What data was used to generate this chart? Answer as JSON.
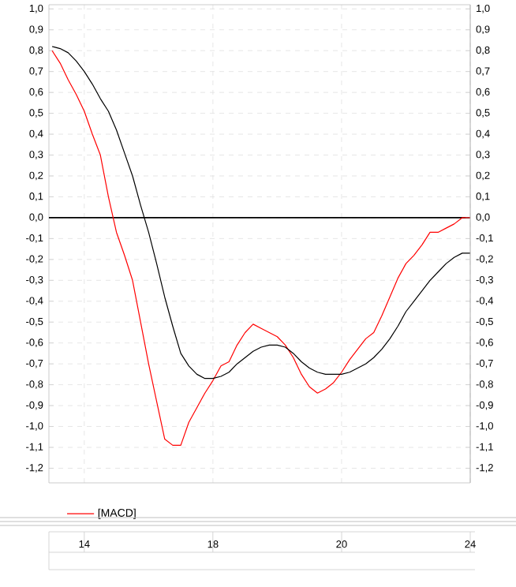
{
  "chart_data": {
    "type": "line",
    "categories": [
      null,
      null,
      null,
      null,
      "14",
      null,
      null,
      null,
      null,
      null,
      null,
      null,
      null,
      null,
      null,
      null,
      null,
      null,
      null,
      null,
      "18",
      null,
      null,
      null,
      null,
      null,
      null,
      null,
      null,
      null,
      null,
      null,
      null,
      null,
      null,
      null,
      "20",
      null,
      null,
      null,
      null,
      null,
      null,
      null,
      null,
      null,
      null,
      null,
      null,
      null,
      null,
      null,
      "24"
    ],
    "series": [
      {
        "name": "[MACD]",
        "color": "#ff0000",
        "values": [
          0.8,
          0.74,
          0.66,
          0.59,
          0.51,
          0.4,
          0.3,
          0.1,
          -0.07,
          -0.18,
          -0.3,
          -0.5,
          -0.7,
          -0.88,
          -1.06,
          -1.09,
          -1.09,
          -0.98,
          -0.91,
          -0.84,
          -0.78,
          -0.71,
          -0.69,
          -0.61,
          -0.55,
          -0.51,
          -0.53,
          -0.55,
          -0.57,
          -0.61,
          -0.67,
          -0.75,
          -0.81,
          -0.84,
          -0.82,
          -0.79,
          -0.74,
          -0.68,
          -0.63,
          -0.58,
          -0.55,
          -0.47,
          -0.38,
          -0.29,
          -0.22,
          -0.18,
          -0.13,
          -0.07,
          -0.07,
          -0.05,
          -0.03,
          0.0,
          0.0
        ]
      },
      {
        "color": "#000000",
        "values": [
          0.82,
          0.81,
          0.79,
          0.75,
          0.7,
          0.64,
          0.57,
          0.51,
          0.42,
          0.31,
          0.2,
          0.06,
          -0.07,
          -0.22,
          -0.38,
          -0.52,
          -0.65,
          -0.71,
          -0.75,
          -0.77,
          -0.77,
          -0.76,
          -0.74,
          -0.7,
          -0.67,
          -0.64,
          -0.62,
          -0.61,
          -0.61,
          -0.62,
          -0.65,
          -0.69,
          -0.72,
          -0.74,
          -0.75,
          -0.75,
          -0.75,
          -0.74,
          -0.72,
          -0.7,
          -0.67,
          -0.63,
          -0.58,
          -0.52,
          -0.45,
          -0.4,
          -0.35,
          -0.3,
          -0.26,
          -0.22,
          -0.19,
          -0.17,
          -0.17
        ]
      }
    ],
    "ylim": [
      -1.27,
      1.02
    ],
    "yticks": [
      {
        "value": 1.0,
        "label": "1,0"
      },
      {
        "value": 0.9,
        "label": "0,9"
      },
      {
        "value": 0.8,
        "label": "0,8"
      },
      {
        "value": 0.7,
        "label": "0,7"
      },
      {
        "value": 0.6,
        "label": "0,6"
      },
      {
        "value": 0.5,
        "label": "0,5"
      },
      {
        "value": 0.4,
        "label": "0,4"
      },
      {
        "value": 0.3,
        "label": "0,3"
      },
      {
        "value": 0.2,
        "label": "0,2"
      },
      {
        "value": 0.1,
        "label": "0,1"
      },
      {
        "value": 0.0,
        "label": "0,0"
      },
      {
        "value": -0.1,
        "label": "-0,1"
      },
      {
        "value": -0.2,
        "label": "-0,2"
      },
      {
        "value": -0.3,
        "label": "-0,3"
      },
      {
        "value": -0.4,
        "label": "-0,4"
      },
      {
        "value": -0.5,
        "label": "-0,5"
      },
      {
        "value": -0.6,
        "label": "-0,6"
      },
      {
        "value": -0.7,
        "label": "-0,7"
      },
      {
        "value": -0.8,
        "label": "-0,8"
      },
      {
        "value": -0.9,
        "label": "-0,9"
      },
      {
        "value": -1.0,
        "label": "-1,0"
      },
      {
        "value": -1.1,
        "label": "-1,1"
      },
      {
        "value": -1.2,
        "label": "-1,2"
      }
    ],
    "y2lim": [
      -1.27,
      1.02
    ],
    "y2ticks": [
      {
        "value": 1.0,
        "label": "1,0"
      },
      {
        "value": 0.9,
        "label": "0,9"
      },
      {
        "value": 0.8,
        "label": "0,8"
      },
      {
        "value": 0.7,
        "label": "0,7"
      },
      {
        "value": 0.6,
        "label": "0,6"
      },
      {
        "value": 0.5,
        "label": "0,5"
      },
      {
        "value": 0.4,
        "label": "0,4"
      },
      {
        "value": 0.3,
        "label": "0,3"
      },
      {
        "value": 0.2,
        "label": "0,2"
      },
      {
        "value": 0.1,
        "label": "0,1"
      },
      {
        "value": 0.0,
        "label": "0,0"
      },
      {
        "value": -0.1,
        "label": "-0,1"
      },
      {
        "value": -0.2,
        "label": "-0,2"
      },
      {
        "value": -0.3,
        "label": "-0,3"
      },
      {
        "value": -0.4,
        "label": "-0,4"
      },
      {
        "value": -0.5,
        "label": "-0,5"
      },
      {
        "value": -0.6,
        "label": "-0,6"
      },
      {
        "value": -0.7,
        "label": "-0,7"
      },
      {
        "value": -0.8,
        "label": "-0,8"
      },
      {
        "value": -0.9,
        "label": "-0,9"
      },
      {
        "value": -1.0,
        "label": "-1,0"
      },
      {
        "value": -1.1,
        "label": "-1,1"
      },
      {
        "value": -1.2,
        "label": "-1,2"
      }
    ],
    "ref_lines": [
      {
        "axis": "y",
        "value": 0,
        "color": "#000000"
      }
    ],
    "grid": true,
    "legend": "bottom"
  }
}
